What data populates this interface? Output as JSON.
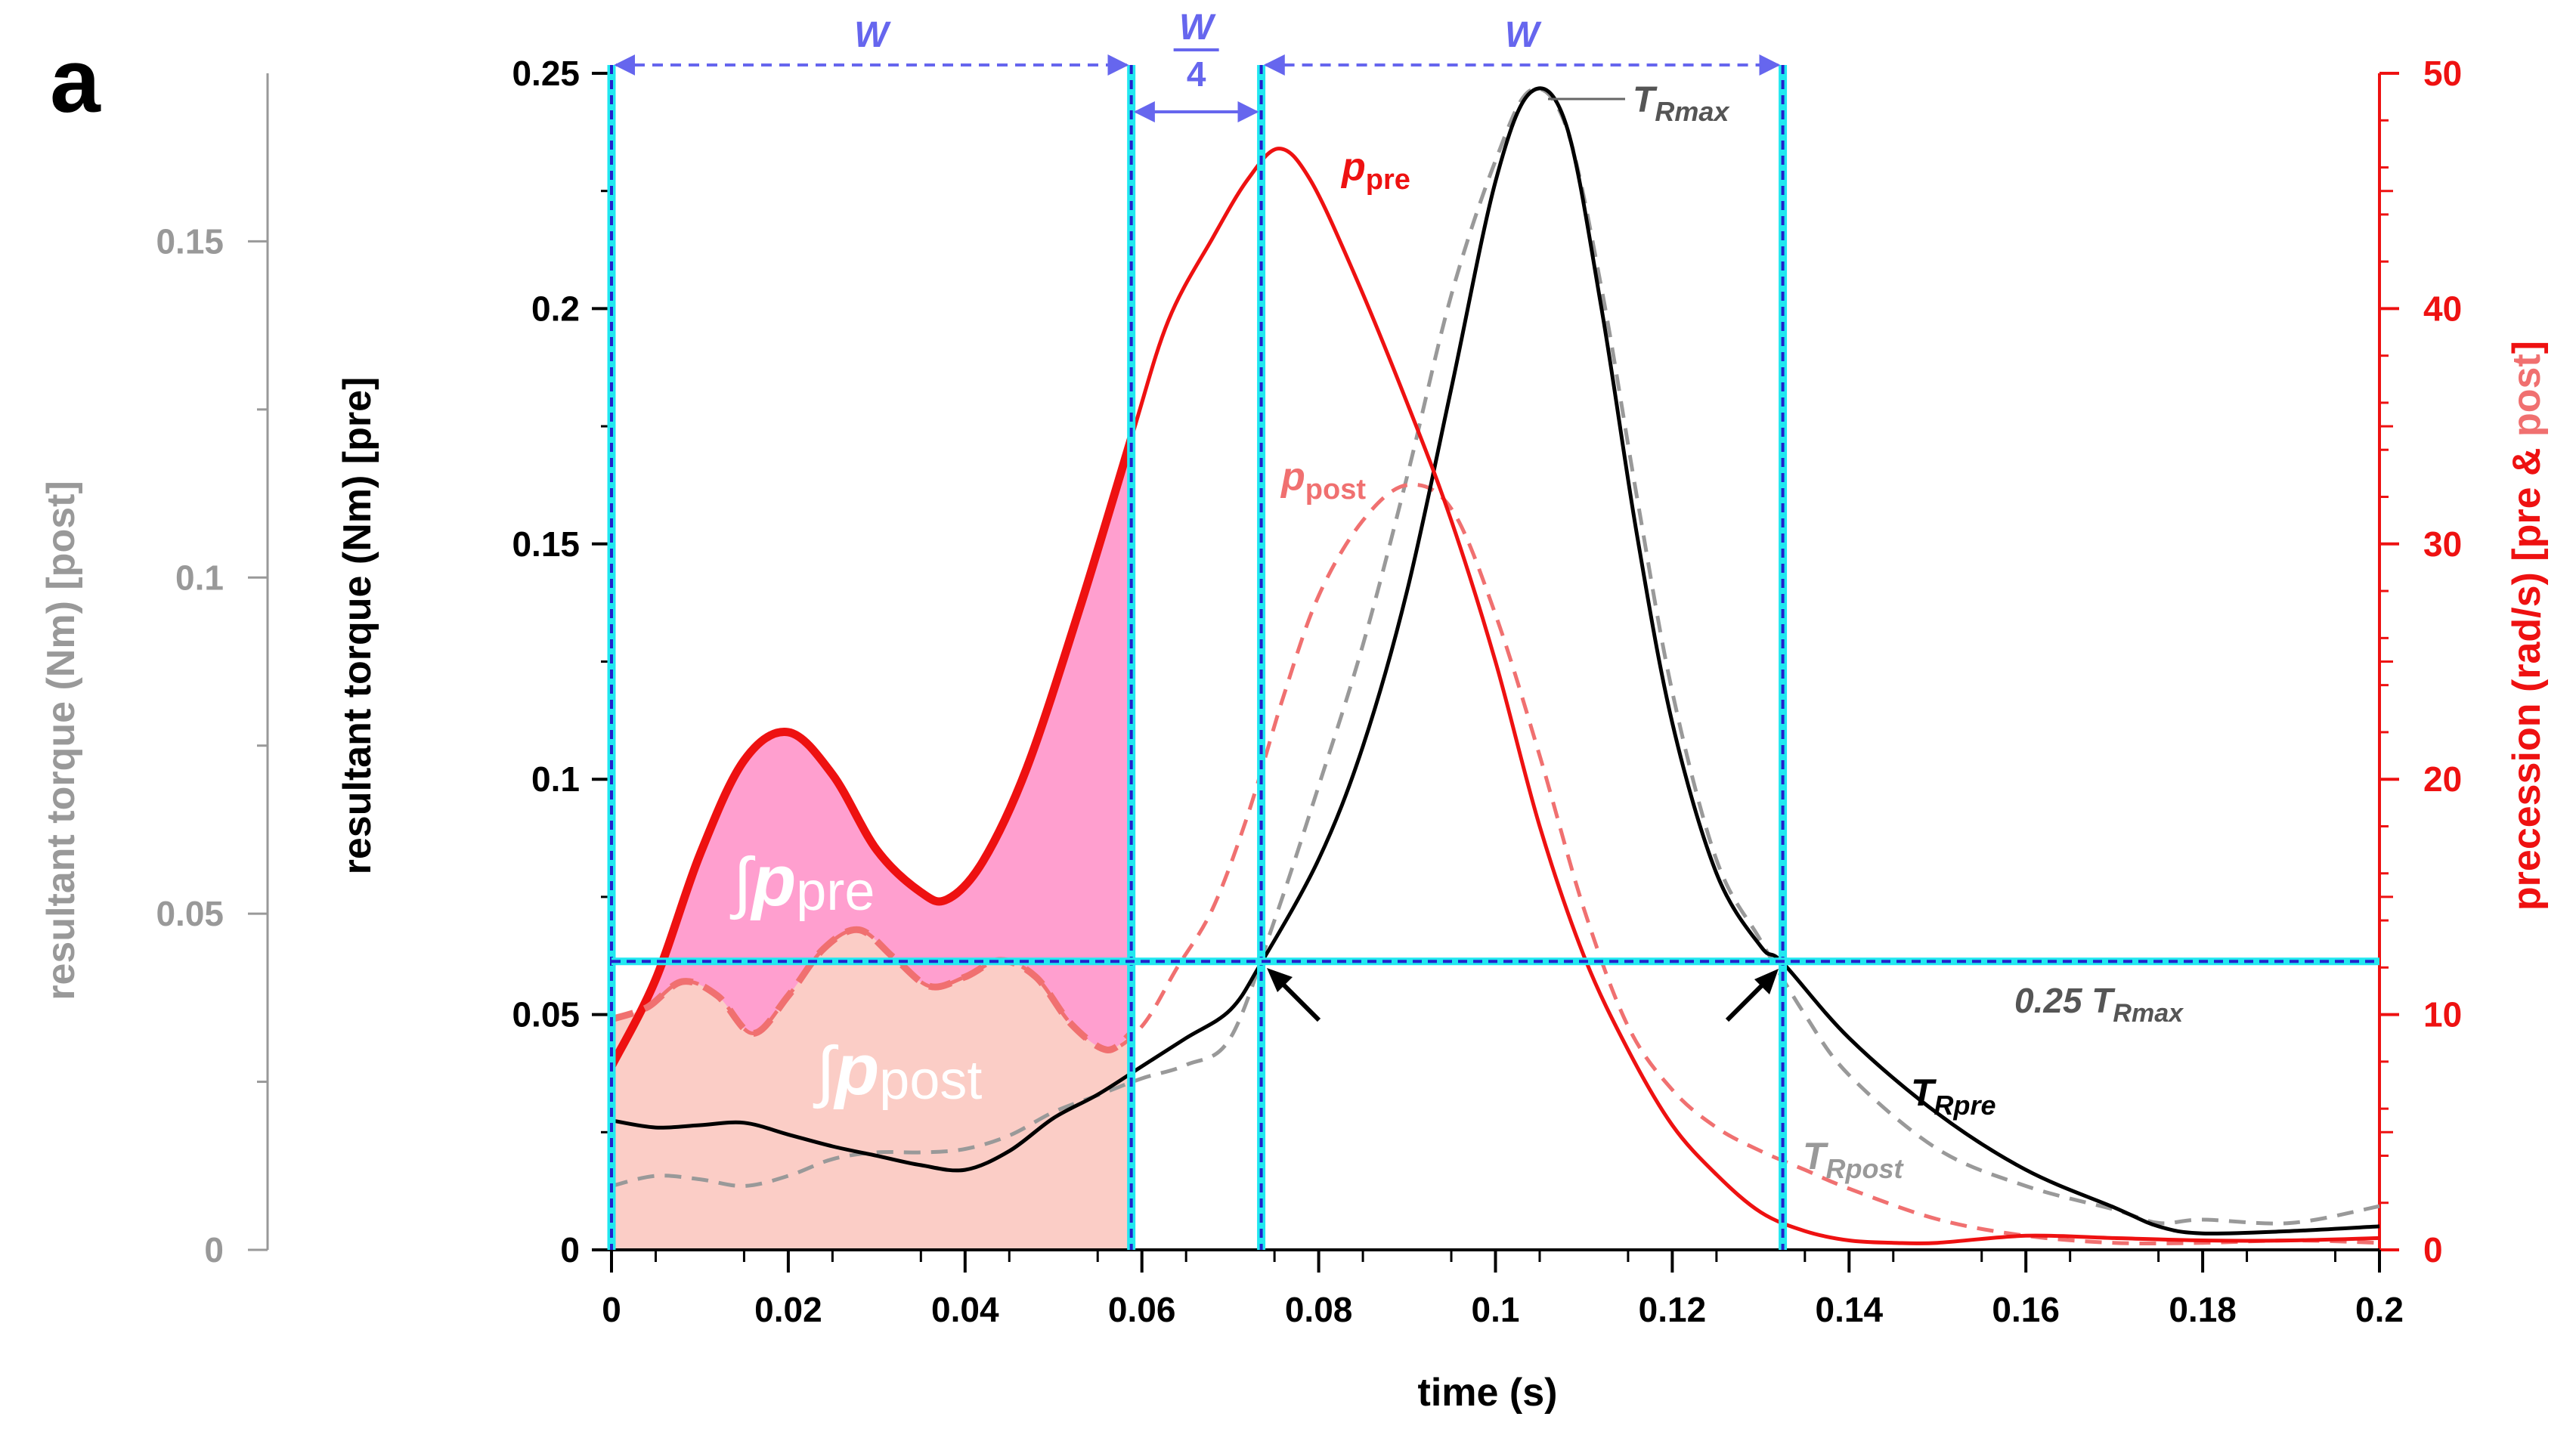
{
  "panel_label": "a",
  "colors": {
    "pre_torque": "#000000",
    "post_torque": "#999999",
    "pre_precession": "#ee1111",
    "post_precession": "#f07070",
    "fill_pre": "#ff9fcf",
    "fill_post": "#fbcdc6",
    "window": "#6666ee",
    "cyan": "#22e8f0",
    "threshold": "#2222cc"
  },
  "chart_data": {
    "type": "line",
    "xlabel": "time (s)",
    "x_ticks": [
      "0",
      "0.02",
      "0.04",
      "0.06",
      "0.08",
      "0.1",
      "0.12",
      "0.14",
      "0.16",
      "0.18",
      "0.2"
    ],
    "xlim": [
      0,
      0.2
    ],
    "left_axis_pre": {
      "label": "resultant torque (Nm) [pre]",
      "range": [
        0,
        0.25
      ],
      "ticks": [
        "0",
        "0.05",
        "0.1",
        "0.15",
        "0.2",
        "0.25"
      ]
    },
    "left_axis_post": {
      "label": "resultant torque (Nm) [post]",
      "range": [
        0,
        0.175
      ],
      "ticks": [
        "0",
        "0.05",
        "0.1",
        "0.15"
      ]
    },
    "right_axis": {
      "label_main": "precession (rad/s) [pre & ",
      "label_post": "post",
      "label_end": "]",
      "range": [
        0,
        50
      ],
      "ticks": [
        "0",
        "10",
        "20",
        "30",
        "40",
        "50"
      ]
    },
    "series": [
      {
        "name": "T_Rpre",
        "axis": "left_pre",
        "style": "solid",
        "x": [
          0,
          0.005,
          0.01,
          0.015,
          0.02,
          0.025,
          0.03,
          0.035,
          0.04,
          0.045,
          0.05,
          0.055,
          0.06,
          0.065,
          0.07,
          0.0735,
          0.08,
          0.085,
          0.09,
          0.095,
          0.1,
          0.104,
          0.108,
          0.112,
          0.116,
          0.12,
          0.125,
          0.13,
          0.1325,
          0.14,
          0.15,
          0.16,
          0.17,
          0.175,
          0.18,
          0.19,
          0.2
        ],
        "y": [
          0.0275,
          0.026,
          0.0265,
          0.027,
          0.0245,
          0.022,
          0.02,
          0.018,
          0.017,
          0.021,
          0.028,
          0.033,
          0.039,
          0.045,
          0.051,
          0.061,
          0.083,
          0.107,
          0.14,
          0.183,
          0.227,
          0.246,
          0.239,
          0.2,
          0.152,
          0.112,
          0.08,
          0.0645,
          0.061,
          0.045,
          0.029,
          0.017,
          0.009,
          0.005,
          0.0035,
          0.004,
          0.005
        ]
      },
      {
        "name": "T_Rpost",
        "axis": "left_post",
        "style": "dashed",
        "x": [
          0,
          0.005,
          0.01,
          0.015,
          0.02,
          0.025,
          0.03,
          0.035,
          0.04,
          0.045,
          0.05,
          0.055,
          0.06,
          0.065,
          0.07,
          0.075,
          0.08,
          0.085,
          0.09,
          0.095,
          0.1,
          0.104,
          0.108,
          0.112,
          0.116,
          0.12,
          0.125,
          0.13,
          0.135,
          0.14,
          0.15,
          0.16,
          0.17,
          0.175,
          0.18,
          0.19,
          0.2
        ],
        "y": [
          0.0095,
          0.011,
          0.0105,
          0.0095,
          0.011,
          0.0135,
          0.0145,
          0.0145,
          0.015,
          0.017,
          0.0205,
          0.023,
          0.0255,
          0.0275,
          0.0315,
          0.049,
          0.069,
          0.09,
          0.115,
          0.142,
          0.162,
          0.1725,
          0.167,
          0.143,
          0.112,
          0.083,
          0.058,
          0.046,
          0.035,
          0.026,
          0.015,
          0.0095,
          0.006,
          0.004,
          0.0045,
          0.004,
          0.0065
        ]
      },
      {
        "name": "p_pre",
        "axis": "right",
        "style": "solid",
        "x": [
          0,
          0.005,
          0.01,
          0.015,
          0.02,
          0.025,
          0.03,
          0.035,
          0.038,
          0.042,
          0.047,
          0.053,
          0.0588,
          0.063,
          0.068,
          0.072,
          0.0755,
          0.079,
          0.084,
          0.09,
          0.095,
          0.1,
          0.105,
          0.11,
          0.115,
          0.12,
          0.125,
          0.13,
          0.135,
          0.14,
          0.145,
          0.15,
          0.16,
          0.17,
          0.18,
          0.19,
          0.2
        ],
        "y": [
          7.8,
          11.5,
          16.8,
          20.8,
          22.0,
          20.2,
          17.0,
          15.2,
          14.9,
          16.5,
          20.5,
          27.3,
          34.5,
          39.5,
          43.0,
          45.5,
          46.8,
          45.5,
          41.5,
          36.0,
          31.0,
          25.0,
          18.0,
          12.5,
          8.5,
          5.3,
          3.2,
          1.6,
          0.8,
          0.4,
          0.3,
          0.3,
          0.6,
          0.5,
          0.4,
          0.4,
          0.5
        ]
      },
      {
        "name": "p_post",
        "axis": "right",
        "style": "dashed",
        "x": [
          0,
          0.004,
          0.008,
          0.012,
          0.016,
          0.02,
          0.024,
          0.028,
          0.032,
          0.036,
          0.04,
          0.044,
          0.048,
          0.052,
          0.056,
          0.06,
          0.064,
          0.068,
          0.072,
          0.076,
          0.08,
          0.085,
          0.09,
          0.095,
          0.1,
          0.105,
          0.11,
          0.115,
          0.12,
          0.125,
          0.13,
          0.135,
          0.14,
          0.15,
          0.16,
          0.17,
          0.18,
          0.19,
          0.2
        ],
        "y": [
          9.8,
          10.3,
          11.4,
          10.8,
          9.2,
          10.8,
          12.8,
          13.6,
          12.4,
          11.2,
          11.6,
          12.3,
          11.6,
          9.6,
          8.5,
          9.5,
          12.0,
          14.5,
          18.5,
          23.5,
          27.8,
          31.0,
          32.5,
          31.5,
          27.0,
          21.0,
          14.5,
          9.5,
          6.8,
          5.2,
          4.2,
          3.4,
          2.6,
          1.3,
          0.6,
          0.3,
          0.3,
          0.4,
          0.3
        ]
      }
    ],
    "shaded_areas": [
      {
        "label_symbol": "∫",
        "label_p": "p",
        "label_sub": "pre",
        "x_range": [
          0,
          0.0588
        ]
      },
      {
        "label_symbol": "∫",
        "label_p": "p",
        "label_sub": "post",
        "x_range": [
          0,
          0.0588
        ]
      }
    ],
    "vertical_markers_x": [
      0,
      0.0588,
      0.0735,
      0.1325
    ],
    "threshold": {
      "value": 0.0613,
      "label_prefix": "0.25 T",
      "label_sub": "Rmax"
    },
    "window_labels": [
      "W",
      "W",
      "4",
      "W"
    ],
    "annotations": {
      "T_Rmax": {
        "main": "T",
        "sub": "Rmax"
      },
      "p_pre": {
        "main": "p",
        "sub": "pre"
      },
      "p_post": {
        "main": "p",
        "sub": "post"
      },
      "T_Rpre": {
        "main": "T",
        "sub": "Rpre"
      },
      "T_Rpost": {
        "main": "T",
        "sub": "Rpost"
      }
    }
  }
}
